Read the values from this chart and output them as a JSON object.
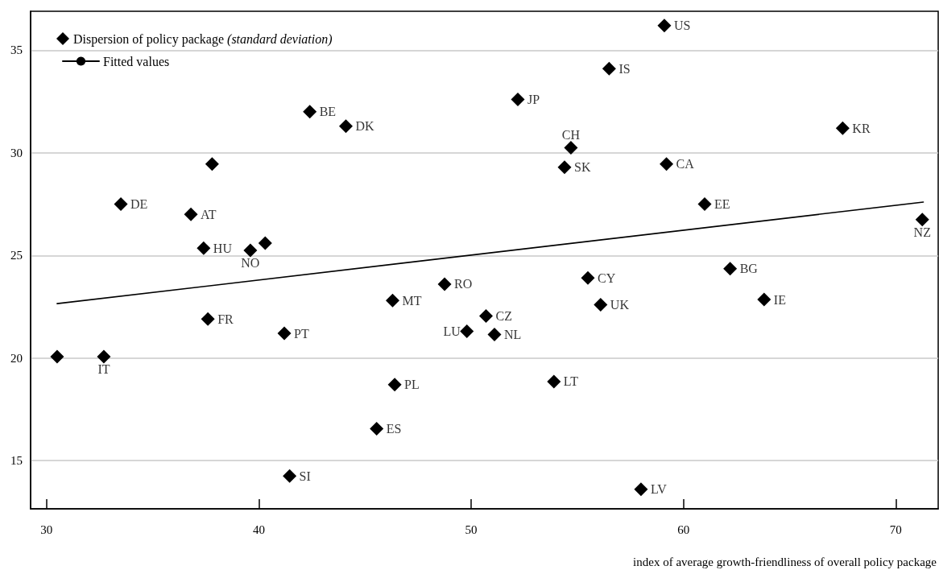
{
  "chart_data": {
    "type": "scatter",
    "xlabel": "index of average growth-friendliness of overall policy package",
    "xlim": [
      29.25,
      72
    ],
    "xticks": [
      30,
      40,
      50,
      60,
      70
    ],
    "ylim": [
      12.65,
      36.9
    ],
    "yticks": [
      15,
      20,
      25,
      30,
      35
    ],
    "grid": "y",
    "legend": "top left",
    "series": [
      {
        "name": "Dispersion of policy package (standard deviation)",
        "type": "scatter",
        "marker": "diamond",
        "color": "#000000",
        "x": [
          59.1,
          56.5,
          52.2,
          42.4,
          44.1,
          67.5,
          54.7,
          37.8,
          54.4,
          59.2,
          33.5,
          61.0,
          36.8,
          71.25,
          40.3,
          37.4,
          39.6,
          62.2,
          55.5,
          48.75,
          63.8,
          46.3,
          56.1,
          50.7,
          37.6,
          49.8,
          41.2,
          51.1,
          30.5,
          32.7,
          53.9,
          46.4,
          45.55,
          41.45,
          58.0
        ],
        "values": [
          36.2,
          34.1,
          32.6,
          32.0,
          31.3,
          31.2,
          30.25,
          29.45,
          29.3,
          29.45,
          27.5,
          27.5,
          27.0,
          26.75,
          25.6,
          25.35,
          25.25,
          24.35,
          23.9,
          23.6,
          22.85,
          22.8,
          22.6,
          22.05,
          21.9,
          21.3,
          21.2,
          21.15,
          20.07,
          20.07,
          18.85,
          18.7,
          16.55,
          14.25,
          13.6
        ]
      },
      {
        "name": "Fitted values",
        "type": "line",
        "marker": "none",
        "line_style": "solid",
        "color": "#000000",
        "x": [
          30.5,
          71.3
        ],
        "values": [
          22.65,
          27.6
        ]
      }
    ],
    "annotations": [
      {
        "text": "US",
        "x": 59.1,
        "y": 36.2
      },
      {
        "text": "IS",
        "x": 56.5,
        "y": 34.1
      },
      {
        "text": "JP",
        "x": 52.2,
        "y": 32.6
      },
      {
        "text": "BE",
        "x": 42.4,
        "y": 32.0
      },
      {
        "text": "DK",
        "x": 44.1,
        "y": 31.3
      },
      {
        "text": "KR",
        "x": 67.5,
        "y": 31.2
      },
      {
        "text": "CH",
        "x": 54.7,
        "y": 30.25
      },
      {
        "text": "SK",
        "x": 54.4,
        "y": 29.3
      },
      {
        "text": "CA",
        "x": 59.2,
        "y": 29.45
      },
      {
        "text": "DE",
        "x": 33.5,
        "y": 27.5
      },
      {
        "text": "EE",
        "x": 61.0,
        "y": 27.5
      },
      {
        "text": "AT",
        "x": 36.8,
        "y": 27.0
      },
      {
        "text": "NZ",
        "x": 71.25,
        "y": 26.75
      },
      {
        "text": "HU",
        "x": 37.4,
        "y": 25.35
      },
      {
        "text": "NO",
        "x": 39.6,
        "y": 25.25
      },
      {
        "text": "BG",
        "x": 62.2,
        "y": 24.35
      },
      {
        "text": "CY",
        "x": 55.5,
        "y": 23.9
      },
      {
        "text": "RO",
        "x": 48.75,
        "y": 23.6
      },
      {
        "text": "IE",
        "x": 63.8,
        "y": 22.85
      },
      {
        "text": "MT",
        "x": 46.3,
        "y": 22.8
      },
      {
        "text": "UK",
        "x": 56.1,
        "y": 22.6
      },
      {
        "text": "CZ",
        "x": 50.7,
        "y": 22.05
      },
      {
        "text": "FR",
        "x": 37.6,
        "y": 21.9
      },
      {
        "text": "LU",
        "x": 49.8,
        "y": 21.3
      },
      {
        "text": "PT",
        "x": 41.2,
        "y": 21.2
      },
      {
        "text": "NL",
        "x": 51.1,
        "y": 21.15
      },
      {
        "text": "IT",
        "x": 32.7,
        "y": 20.07
      },
      {
        "text": "LT",
        "x": 53.9,
        "y": 18.85
      },
      {
        "text": "PL",
        "x": 46.4,
        "y": 18.7
      },
      {
        "text": "ES",
        "x": 45.55,
        "y": 16.55
      },
      {
        "text": "SI",
        "x": 41.45,
        "y": 14.25
      },
      {
        "text": "LV",
        "x": 58.0,
        "y": 13.6
      }
    ]
  }
}
